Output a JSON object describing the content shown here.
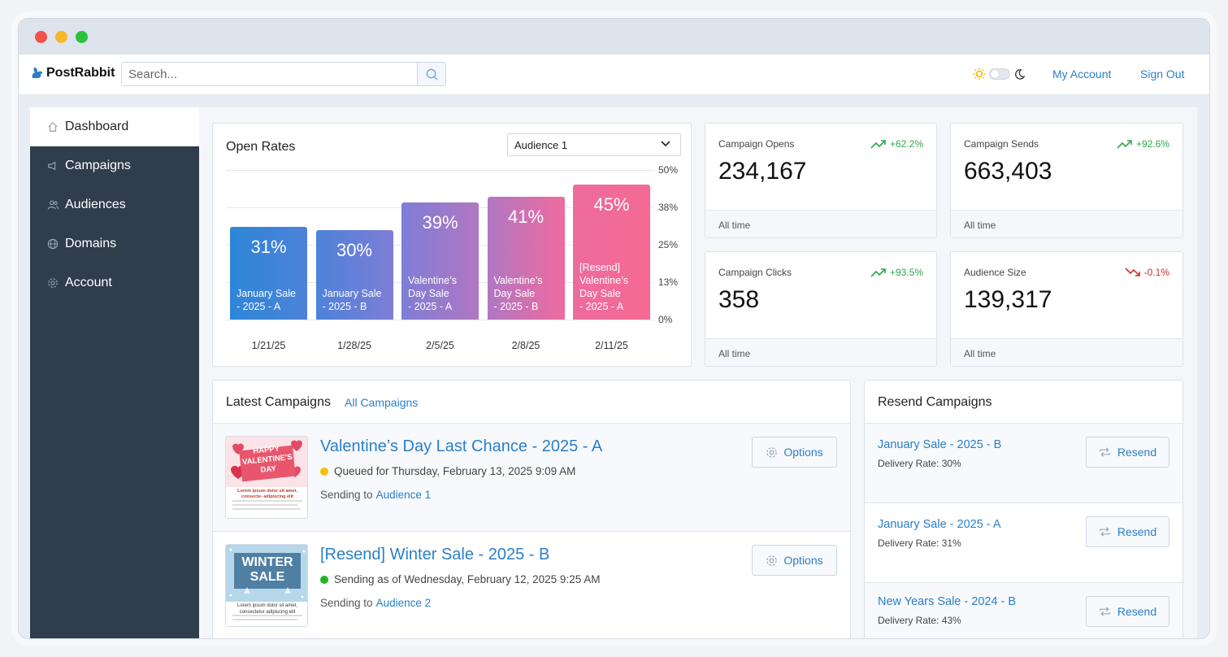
{
  "app": {
    "name": "PostRabbit"
  },
  "search": {
    "placeholder": "Search..."
  },
  "topbar": {
    "my_account": "My Account",
    "sign_out": "Sign Out"
  },
  "sidebar": {
    "items": [
      {
        "label": "Dashboard",
        "icon": "home-icon",
        "active": true
      },
      {
        "label": "Campaigns",
        "icon": "megaphone-icon"
      },
      {
        "label": "Audiences",
        "icon": "users-icon"
      },
      {
        "label": "Domains",
        "icon": "globe-icon"
      },
      {
        "label": "Account",
        "icon": "gear-icon"
      }
    ]
  },
  "open_rates": {
    "title": "Open Rates",
    "audience_select": {
      "selected": "Audience 1"
    }
  },
  "chart_data": {
    "type": "bar",
    "title": "Open Rates",
    "categories": [
      "1/21/25",
      "1/28/25",
      "2/5/25",
      "2/8/25",
      "2/11/25"
    ],
    "values": [
      31,
      30,
      39,
      41,
      45
    ],
    "value_labels": [
      "31%",
      "30%",
      "39%",
      "41%",
      "45%"
    ],
    "bar_labels": [
      [
        "January Sale",
        "- 2025 - A"
      ],
      [
        "January Sale",
        "- 2025 - B"
      ],
      [
        "Valentine’s",
        "Day Sale",
        "- 2025 - A"
      ],
      [
        "Valentine’s",
        "Day Sale",
        "- 2025 - B"
      ],
      [
        "[Resend]",
        "Valentine’s",
        "Day Sale",
        "- 2025 - A"
      ]
    ],
    "y_ticks": [
      "50%",
      "38%",
      "25%",
      "13%",
      "0%"
    ],
    "ylim": [
      0,
      50
    ],
    "colors": [
      "#2d86d8",
      "#4d82d9",
      "#7e7dd6",
      "#b177c2",
      "#ee6b9e"
    ],
    "grid": true
  },
  "stats": [
    {
      "label": "Campaign Opens",
      "value": "234,167",
      "trend": "+62.2%",
      "direction": "up",
      "footer": "All time"
    },
    {
      "label": "Campaign Sends",
      "value": "663,403",
      "trend": "+92.6%",
      "direction": "up",
      "footer": "All time"
    },
    {
      "label": "Campaign Clicks",
      "value": "358",
      "trend": "+93.5%",
      "direction": "up",
      "footer": "All time"
    },
    {
      "label": "Audience Size",
      "value": "139,317",
      "trend": "-0.1%",
      "direction": "down",
      "footer": "All time"
    }
  ],
  "latest_campaigns": {
    "title": "Latest Campaigns",
    "all_link": "All Campaigns",
    "items": [
      {
        "title": "Valentine’s Day Last Chance - 2025 - A",
        "status": "Queued for Thursday, February 13, 2025 9:09 AM",
        "status_color": "#f4c20d",
        "sending_to": "Sending to",
        "audience": "Audience 1",
        "options": "Options",
        "thumb": {
          "lines": [
            "HAPPY",
            "VALENTINE'S",
            "DAY"
          ],
          "caption": "Lorem ipsum dolor sit amet, consecte- adipiscing elit"
        }
      },
      {
        "title": "[Resend] Winter Sale - 2025 - B",
        "status": "Sending as of Wednesday, February 12, 2025 9:25 AM",
        "status_color": "#22b422",
        "sending_to": "Sending to",
        "audience": "Audience 2",
        "options": "Options",
        "thumb": {
          "lines": [
            "WINTER",
            "SALE"
          ],
          "caption": "Lorem ipsum dolor sit amet, consectetur adipiscing elit"
        }
      }
    ]
  },
  "resend_campaigns": {
    "title": "Resend Campaigns",
    "items": [
      {
        "title": "January Sale - 2025 - B",
        "rate": "Delivery Rate: 30%",
        "button": "Resend"
      },
      {
        "title": "January Sale - 2025 - A",
        "rate": "Delivery Rate: 31%",
        "button": "Resend"
      },
      {
        "title": "New Years Sale - 2024 - B",
        "rate": "Delivery Rate: 43%",
        "button": "Resend"
      }
    ]
  }
}
